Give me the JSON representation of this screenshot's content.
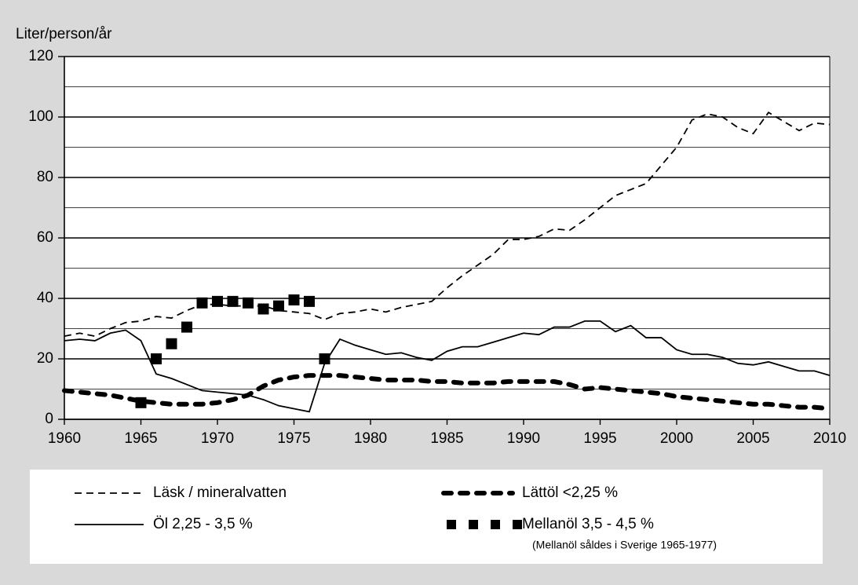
{
  "chart_data": {
    "type": "line",
    "y_label": "Liter/person/år",
    "x": [
      1960,
      1961,
      1962,
      1963,
      1964,
      1965,
      1966,
      1967,
      1968,
      1969,
      1970,
      1971,
      1972,
      1973,
      1974,
      1975,
      1976,
      1977,
      1978,
      1979,
      1980,
      1981,
      1982,
      1983,
      1984,
      1985,
      1986,
      1987,
      1988,
      1989,
      1990,
      1991,
      1992,
      1993,
      1994,
      1995,
      1996,
      1997,
      1998,
      1999,
      2000,
      2001,
      2002,
      2003,
      2004,
      2005,
      2006,
      2007,
      2008,
      2009,
      2010
    ],
    "series": [
      {
        "name": "Läsk / mineralvatten",
        "color": "#000000",
        "style": "dashed",
        "values": [
          27.5,
          28.5,
          27.5,
          30,
          32,
          32.5,
          34,
          33.5,
          36,
          38,
          38,
          37.5,
          37.5,
          37.5,
          36,
          35.5,
          35,
          33,
          35,
          35.5,
          36.5,
          35.5,
          37,
          38,
          39,
          43.5,
          47.5,
          51,
          54.5,
          59.5,
          59.5,
          60.5,
          63,
          62.5,
          66,
          70,
          74,
          76,
          78,
          84,
          90,
          99,
          101,
          100,
          96.5,
          94.5,
          101.5,
          98.5,
          95.5,
          98,
          97.5
        ]
      },
      {
        "name": "Lättöl <2,25 %",
        "color": "#000000",
        "style": "dotted",
        "values": [
          9.5,
          9,
          8.5,
          8,
          7,
          6,
          5.5,
          5,
          5,
          5,
          5.5,
          6.5,
          8,
          11,
          13,
          14,
          14.5,
          14.5,
          14.5,
          14,
          13.5,
          13,
          13,
          13,
          12.5,
          12.5,
          12,
          12,
          12,
          12.5,
          12.5,
          12.5,
          12.5,
          11.5,
          10,
          10.5,
          10,
          9.5,
          9,
          8.5,
          7.5,
          7,
          6.5,
          6,
          5.5,
          5,
          5,
          4.5,
          4,
          4,
          3.5
        ]
      },
      {
        "name": "Öl 2,25 - 3,5 %",
        "color": "#000000",
        "style": "solid",
        "values": [
          26,
          26.5,
          26,
          28.5,
          29.5,
          26,
          15,
          13.5,
          11.5,
          9.5,
          9,
          8.5,
          8,
          6.5,
          4.5,
          3.5,
          2.5,
          18.5,
          26.5,
          24.5,
          23,
          21.5,
          22,
          20.5,
          19.5,
          22.5,
          24,
          24,
          25.5,
          27,
          28.5,
          28,
          30.5,
          30.5,
          32.5,
          32.5,
          29,
          31,
          27,
          27,
          23,
          21.5,
          21.5,
          20.5,
          18.5,
          18,
          19,
          17.5,
          16,
          16,
          14.5
        ]
      },
      {
        "name": "Mellanöl 3,5 - 4,5 %",
        "color": "#000000",
        "style": "markers",
        "values": [
          null,
          null,
          null,
          null,
          null,
          5.5,
          20,
          25,
          30.5,
          38.5,
          39,
          39,
          38.5,
          36.5,
          37.5,
          39.5,
          39,
          20,
          null,
          null,
          null,
          null,
          null,
          null,
          null,
          null,
          null,
          null,
          null,
          null,
          null,
          null,
          null,
          null,
          null,
          null,
          null,
          null,
          null,
          null,
          null,
          null,
          null,
          null,
          null,
          null,
          null,
          null,
          null,
          null,
          null
        ]
      }
    ],
    "legend_note": "(Mellanöl såldes i Sverige 1965-1977)",
    "xlim": [
      1960,
      2010
    ],
    "xticks": [
      1960,
      1965,
      1970,
      1975,
      1980,
      1985,
      1990,
      1995,
      2000,
      2005,
      2010
    ],
    "ylim": [
      0,
      120
    ],
    "yticks": [
      0,
      20,
      40,
      60,
      80,
      100,
      120
    ],
    "minor_yticks": [
      10,
      30,
      50,
      70,
      90,
      110
    ],
    "grid": true
  }
}
